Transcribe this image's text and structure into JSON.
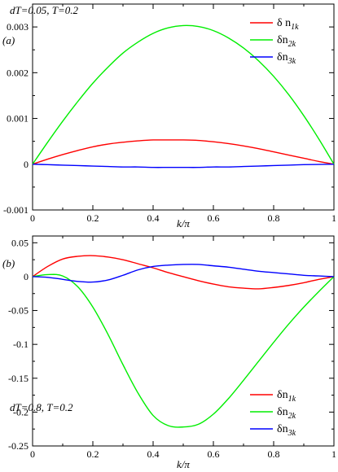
{
  "chart_data": [
    {
      "type": "line",
      "panel_label": "(a)",
      "annotation": "dT=0.05, T=0.2",
      "xlabel": "k/π",
      "ylabel": "",
      "xlim": [
        0,
        1
      ],
      "ylim": [
        -0.001,
        0.0035
      ],
      "xticks": [
        0,
        0.2,
        0.4,
        0.6,
        0.8,
        1
      ],
      "xtick_labels": [
        "0",
        "0.2",
        "0.4",
        "0.6",
        "0.8",
        "1"
      ],
      "yticks": [
        -0.001,
        0,
        0.001,
        0.002,
        0.003
      ],
      "ytick_labels": [
        "-0.001",
        "0",
        "0.001",
        "0.002",
        "0.003"
      ],
      "legend_position": "top-right",
      "grid": false,
      "x": [
        0,
        0.05,
        0.1,
        0.15,
        0.2,
        0.25,
        0.3,
        0.35,
        0.4,
        0.45,
        0.5,
        0.55,
        0.6,
        0.65,
        0.7,
        0.75,
        0.8,
        0.85,
        0.9,
        0.95,
        1
      ],
      "series": [
        {
          "legend_main": "δ n",
          "legend_sub": "1k",
          "color": "#ff0000",
          "values": [
            0,
            0.00011,
            0.00021,
            0.0003,
            0.00038,
            0.00044,
            0.00048,
            0.00051,
            0.00053,
            0.00053,
            0.00053,
            0.00052,
            0.00049,
            0.00045,
            0.0004,
            0.00034,
            0.00027,
            0.0002,
            0.00013,
            6e-05,
            0
          ]
        },
        {
          "legend_main": "δn",
          "legend_sub": "2k",
          "color": "#00ee00",
          "values": [
            0,
            0.00048,
            0.00094,
            0.00137,
            0.00177,
            0.00212,
            0.00243,
            0.00267,
            0.00286,
            0.00298,
            0.00303,
            0.00301,
            0.00292,
            0.00276,
            0.00254,
            0.00226,
            0.00192,
            0.00152,
            0.00106,
            0.00055,
            0
          ]
        },
        {
          "legend_main": "δn",
          "legend_sub": "3k",
          "color": "#0000ff",
          "values": [
            0,
            -1e-05,
            -2e-05,
            -3e-05,
            -4e-05,
            -5e-05,
            -6e-05,
            -6e-05,
            -7e-05,
            -7e-05,
            -7e-05,
            -7e-05,
            -6e-05,
            -6e-05,
            -5e-05,
            -4e-05,
            -3e-05,
            -2e-05,
            -1e-05,
            -5e-06,
            0
          ]
        }
      ]
    },
    {
      "type": "line",
      "panel_label": "(b)",
      "annotation": "dT=0.8, T=0.2",
      "xlabel": "k/π",
      "ylabel": "",
      "xlim": [
        0,
        1
      ],
      "ylim": [
        -0.25,
        0.06
      ],
      "xticks": [
        0,
        0.2,
        0.4,
        0.6,
        0.8,
        1
      ],
      "xtick_labels": [
        "0",
        "0.2",
        "0.4",
        "0.6",
        "0.8",
        "1"
      ],
      "yticks": [
        -0.25,
        -0.2,
        -0.15,
        -0.1,
        -0.05,
        0,
        0.05
      ],
      "ytick_labels": [
        "-0.25",
        "-0.2",
        "-0.15",
        "-0.1",
        "-0.05",
        "0",
        "0.05"
      ],
      "legend_position": "lower-right",
      "grid": false,
      "x": [
        0,
        0.05,
        0.1,
        0.15,
        0.2,
        0.25,
        0.3,
        0.35,
        0.4,
        0.45,
        0.5,
        0.55,
        0.6,
        0.65,
        0.7,
        0.75,
        0.8,
        0.85,
        0.9,
        0.95,
        1
      ],
      "series": [
        {
          "legend_main": "δn",
          "legend_sub": "1k",
          "color": "#ff0000",
          "values": [
            0,
            0.015,
            0.026,
            0.03,
            0.031,
            0.029,
            0.025,
            0.019,
            0.013,
            0.006,
            0,
            -0.006,
            -0.011,
            -0.015,
            -0.017,
            -0.018,
            -0.016,
            -0.013,
            -0.009,
            -0.004,
            0
          ]
        },
        {
          "legend_main": "δn",
          "legend_sub": "2k",
          "color": "#00ee00",
          "values": [
            0,
            0.003,
            0.001,
            -0.015,
            -0.045,
            -0.085,
            -0.13,
            -0.172,
            -0.205,
            -0.22,
            -0.222,
            -0.218,
            -0.203,
            -0.18,
            -0.153,
            -0.125,
            -0.097,
            -0.07,
            -0.045,
            -0.022,
            0
          ]
        },
        {
          "legend_main": "δn",
          "legend_sub": "3k",
          "color": "#0000ff",
          "values": [
            0,
            -0.001,
            -0.004,
            -0.007,
            -0.008,
            -0.005,
            0.002,
            0.01,
            0.015,
            0.017,
            0.018,
            0.018,
            0.016,
            0.014,
            0.011,
            0.008,
            0.006,
            0.004,
            0.002,
            0.001,
            0
          ]
        }
      ]
    }
  ]
}
